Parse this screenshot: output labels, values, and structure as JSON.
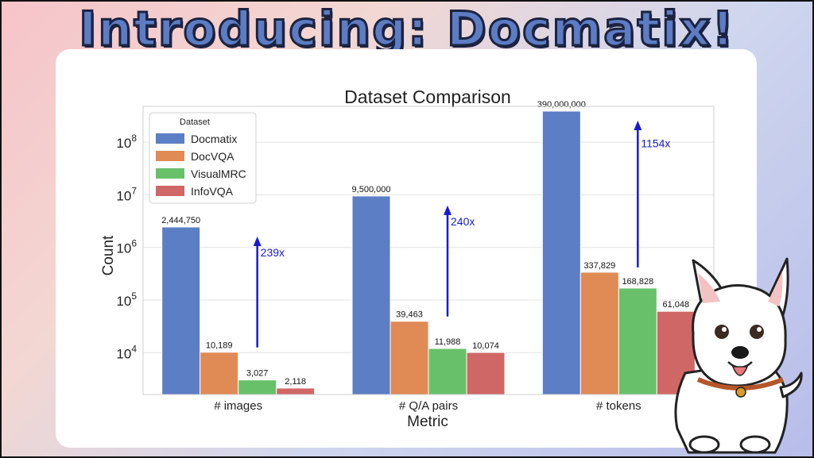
{
  "headline": "Introducing: Docmatix!",
  "chart_data": {
    "type": "bar",
    "title": "Dataset Comparison",
    "xlabel": "Metric",
    "ylabel": "Count",
    "yscale": "log",
    "ylim": [
      1600,
      480000000
    ],
    "grid": true,
    "legend_title": "Dataset",
    "legend_position": "top-left",
    "categories": [
      "# images",
      "# Q/A pairs",
      "# tokens"
    ],
    "series": [
      {
        "name": "Docmatix",
        "color": "#5b7ec4",
        "values": [
          2444750,
          9500000,
          390000000
        ],
        "labels": [
          "2,444,750",
          "9,500,000",
          "390,000,000"
        ]
      },
      {
        "name": "DocVQA",
        "color": "#e08a55",
        "values": [
          10189,
          39463,
          337829
        ],
        "labels": [
          "10,189",
          "39,463",
          "337,829"
        ]
      },
      {
        "name": "VisualMRC",
        "color": "#68c06b",
        "values": [
          3027,
          11988,
          168828
        ],
        "labels": [
          "3,027",
          "11,988",
          "168,828"
        ]
      },
      {
        "name": "InfoVQA",
        "color": "#cf6766",
        "values": [
          2118,
          10074,
          61048
        ],
        "labels": [
          "2,118",
          "10,074",
          "61,048"
        ]
      }
    ],
    "yticks": [
      {
        "value": 10000,
        "base": "10",
        "exp": "4"
      },
      {
        "value": 100000,
        "base": "10",
        "exp": "5"
      },
      {
        "value": 1000000,
        "base": "10",
        "exp": "6"
      },
      {
        "value": 10000000,
        "base": "10",
        "exp": "7"
      },
      {
        "value": 100000000,
        "base": "10",
        "exp": "8"
      }
    ],
    "annotations": [
      {
        "category": 0,
        "text": "239x",
        "from": 10189,
        "to": 2444750
      },
      {
        "category": 1,
        "text": "240x",
        "from": 39463,
        "to": 9500000
      },
      {
        "category": 2,
        "text": "1154x",
        "from": 337829,
        "to": 390000000
      }
    ],
    "annotation_color": "#1a1acc"
  }
}
